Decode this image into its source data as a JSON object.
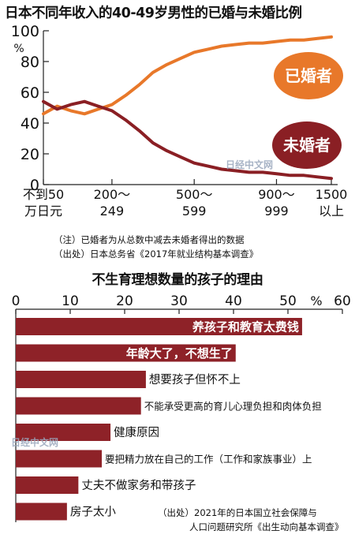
{
  "chart1_title": "日本不同年收入的40-49岁男性的已婚与未婚比例",
  "chart2_title": "不生育理想数量的孩子的理由",
  "watermark": "日经中文网",
  "notes1": [
    "（注）已婚者为从总数中减去未婚者得出的数据",
    "（出处）日本总务省《2017年就业结构基本调查》"
  ],
  "notes2": [
    "（出处）2021年的日本国立社会保障与",
    "人口问题研究所《出生动向基本调查》"
  ],
  "colors": {
    "married": "#E8782A",
    "unmarried": "#8A1F24",
    "bar": "#8E2228"
  },
  "chart_data": [
    {
      "type": "line",
      "title": "日本不同年收入的40-49岁男性的已婚与未婚比例",
      "ylabel": "%",
      "ylim": [
        0,
        100
      ],
      "yticks": [
        0,
        20,
        40,
        60,
        80,
        100
      ],
      "x_tick_labels": [
        [
          "不到50",
          "万日元"
        ],
        [
          "200～",
          "249"
        ],
        [
          "500～",
          "599"
        ],
        [
          "900～",
          "999"
        ],
        [
          "1500",
          "以上"
        ]
      ],
      "x_tick_positions": [
        0,
        5,
        11,
        17,
        21
      ],
      "series": [
        {
          "name": "已婚者",
          "x": [
            0,
            1,
            2,
            3,
            4,
            5,
            6,
            7,
            8,
            9,
            10,
            11,
            12,
            13,
            14,
            15,
            16,
            17,
            18,
            19,
            20,
            21
          ],
          "values": [
            46,
            51,
            48,
            46,
            49,
            52,
            58,
            65,
            73,
            78,
            82,
            86,
            88,
            90,
            91,
            92,
            92,
            93,
            94,
            94,
            95,
            96
          ]
        },
        {
          "name": "未婚者",
          "x": [
            0,
            1,
            2,
            3,
            4,
            5,
            6,
            7,
            8,
            9,
            10,
            11,
            12,
            13,
            14,
            15,
            16,
            17,
            18,
            19,
            20,
            21
          ],
          "values": [
            54,
            49,
            52,
            54,
            51,
            48,
            42,
            35,
            27,
            22,
            18,
            14,
            12,
            10,
            9,
            8,
            8,
            7,
            6,
            6,
            5,
            4
          ]
        }
      ],
      "grid": false
    },
    {
      "type": "bar",
      "orientation": "horizontal",
      "title": "不生育理想数量的孩子的理由",
      "xlim": [
        0,
        60
      ],
      "xticks": [
        0,
        10,
        20,
        30,
        40,
        50,
        60
      ],
      "unit": "%",
      "categories": [
        "养孩子和教育太费钱",
        "年龄大了，不想生了",
        "想要孩子但怀不上",
        "不能承受更高的育儿心理负担和肉体负担",
        "健康原因",
        "要把精力放在自己的工作（工作和家族事业）上",
        "丈夫不做家务和带孩子",
        "房子太小"
      ],
      "values": [
        52.6,
        40.4,
        23.9,
        23.0,
        17.4,
        15.8,
        11.5,
        9.4
      ]
    }
  ]
}
